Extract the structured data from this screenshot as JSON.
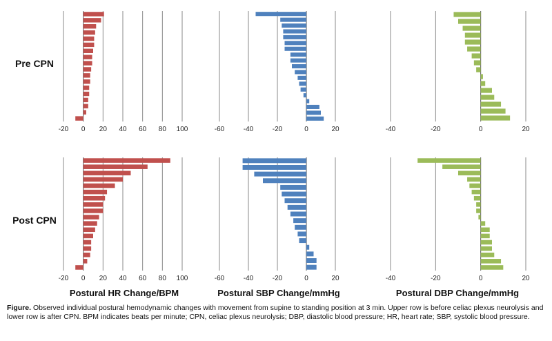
{
  "row_labels": [
    "Pre CPN",
    "Post CPN"
  ],
  "x_labels": [
    "Postural HR Change/BPM",
    "Postural SBP Change/mmHg",
    "Postural DBP Change/mmHg"
  ],
  "caption": {
    "label": "Figure.",
    "text": "Observed individual postural hemodynamic changes with movement from supine to standing position at 3 min. Upper row is before celiac plexus neurolysis and lower row is after CPN. BPM indicates beats per minute; CPN, celiac plexus neurolysis; DBP, diastolic blood pressure; HR, heart rate; SBP, systolic blood pressure."
  },
  "colors": {
    "hr": "#c0504d",
    "sbp": "#4f81bd",
    "dbp": "#9bbb59"
  },
  "chart_data": [
    {
      "type": "bar",
      "orientation": "horizontal",
      "panel": "Pre CPN HR",
      "color_key": "hr",
      "xlabel": "",
      "xlim": [
        -20,
        100
      ],
      "xticks": [
        -20,
        0,
        20,
        40,
        60,
        80,
        100
      ],
      "grid": true,
      "values": [
        21,
        18,
        13,
        12,
        11,
        11,
        10,
        9,
        9,
        8,
        7,
        7,
        6,
        6,
        5,
        5,
        3,
        -8
      ]
    },
    {
      "type": "bar",
      "orientation": "horizontal",
      "panel": "Pre CPN SBP",
      "color_key": "sbp",
      "xlabel": "",
      "xlim": [
        -60,
        20
      ],
      "xticks": [
        -60,
        -40,
        -20,
        0,
        20
      ],
      "grid": true,
      "values": [
        -35,
        -18,
        -17,
        -16,
        -16,
        -15,
        -15,
        -11,
        -11,
        -10,
        -8,
        -6,
        -5,
        -4,
        -2,
        2,
        9,
        10,
        12
      ]
    },
    {
      "type": "bar",
      "orientation": "horizontal",
      "panel": "Pre CPN DBP",
      "color_key": "dbp",
      "xlabel": "",
      "xlim": [
        -40,
        20
      ],
      "xticks": [
        -40,
        -20,
        0,
        20
      ],
      "grid": true,
      "values": [
        -12,
        -10,
        -8,
        -7,
        -7,
        -6,
        -4,
        -3,
        -2,
        1,
        2,
        5,
        6,
        9,
        11,
        13
      ]
    },
    {
      "type": "bar",
      "orientation": "horizontal",
      "panel": "Post CPN HR",
      "color_key": "hr",
      "xlabel": "Postural HR Change/BPM",
      "xlim": [
        -20,
        100
      ],
      "xticks": [
        -20,
        0,
        20,
        40,
        60,
        80,
        100
      ],
      "grid": true,
      "values": [
        88,
        65,
        48,
        40,
        32,
        24,
        22,
        20,
        20,
        16,
        14,
        12,
        10,
        8,
        8,
        7,
        4,
        -8
      ]
    },
    {
      "type": "bar",
      "orientation": "horizontal",
      "panel": "Post CPN SBP",
      "color_key": "sbp",
      "xlabel": "Postural SBP Change/mmHg",
      "xlim": [
        -60,
        20
      ],
      "xticks": [
        -60,
        -40,
        -20,
        0,
        20
      ],
      "grid": true,
      "values": [
        -44,
        -44,
        -36,
        -30,
        -18,
        -17,
        -15,
        -13,
        -11,
        -9,
        -8,
        -6,
        -5,
        2,
        5,
        7,
        7
      ]
    },
    {
      "type": "bar",
      "orientation": "horizontal",
      "panel": "Post CPN DBP",
      "color_key": "dbp",
      "xlabel": "Postural DBP Change/mmHg",
      "xlim": [
        -40,
        20
      ],
      "xticks": [
        -40,
        -20,
        0,
        20
      ],
      "grid": true,
      "values": [
        -28,
        -17,
        -10,
        -6,
        -5,
        -4,
        -3,
        -2,
        -2,
        -1,
        2,
        4,
        4,
        5,
        5,
        6,
        9,
        10
      ]
    }
  ]
}
